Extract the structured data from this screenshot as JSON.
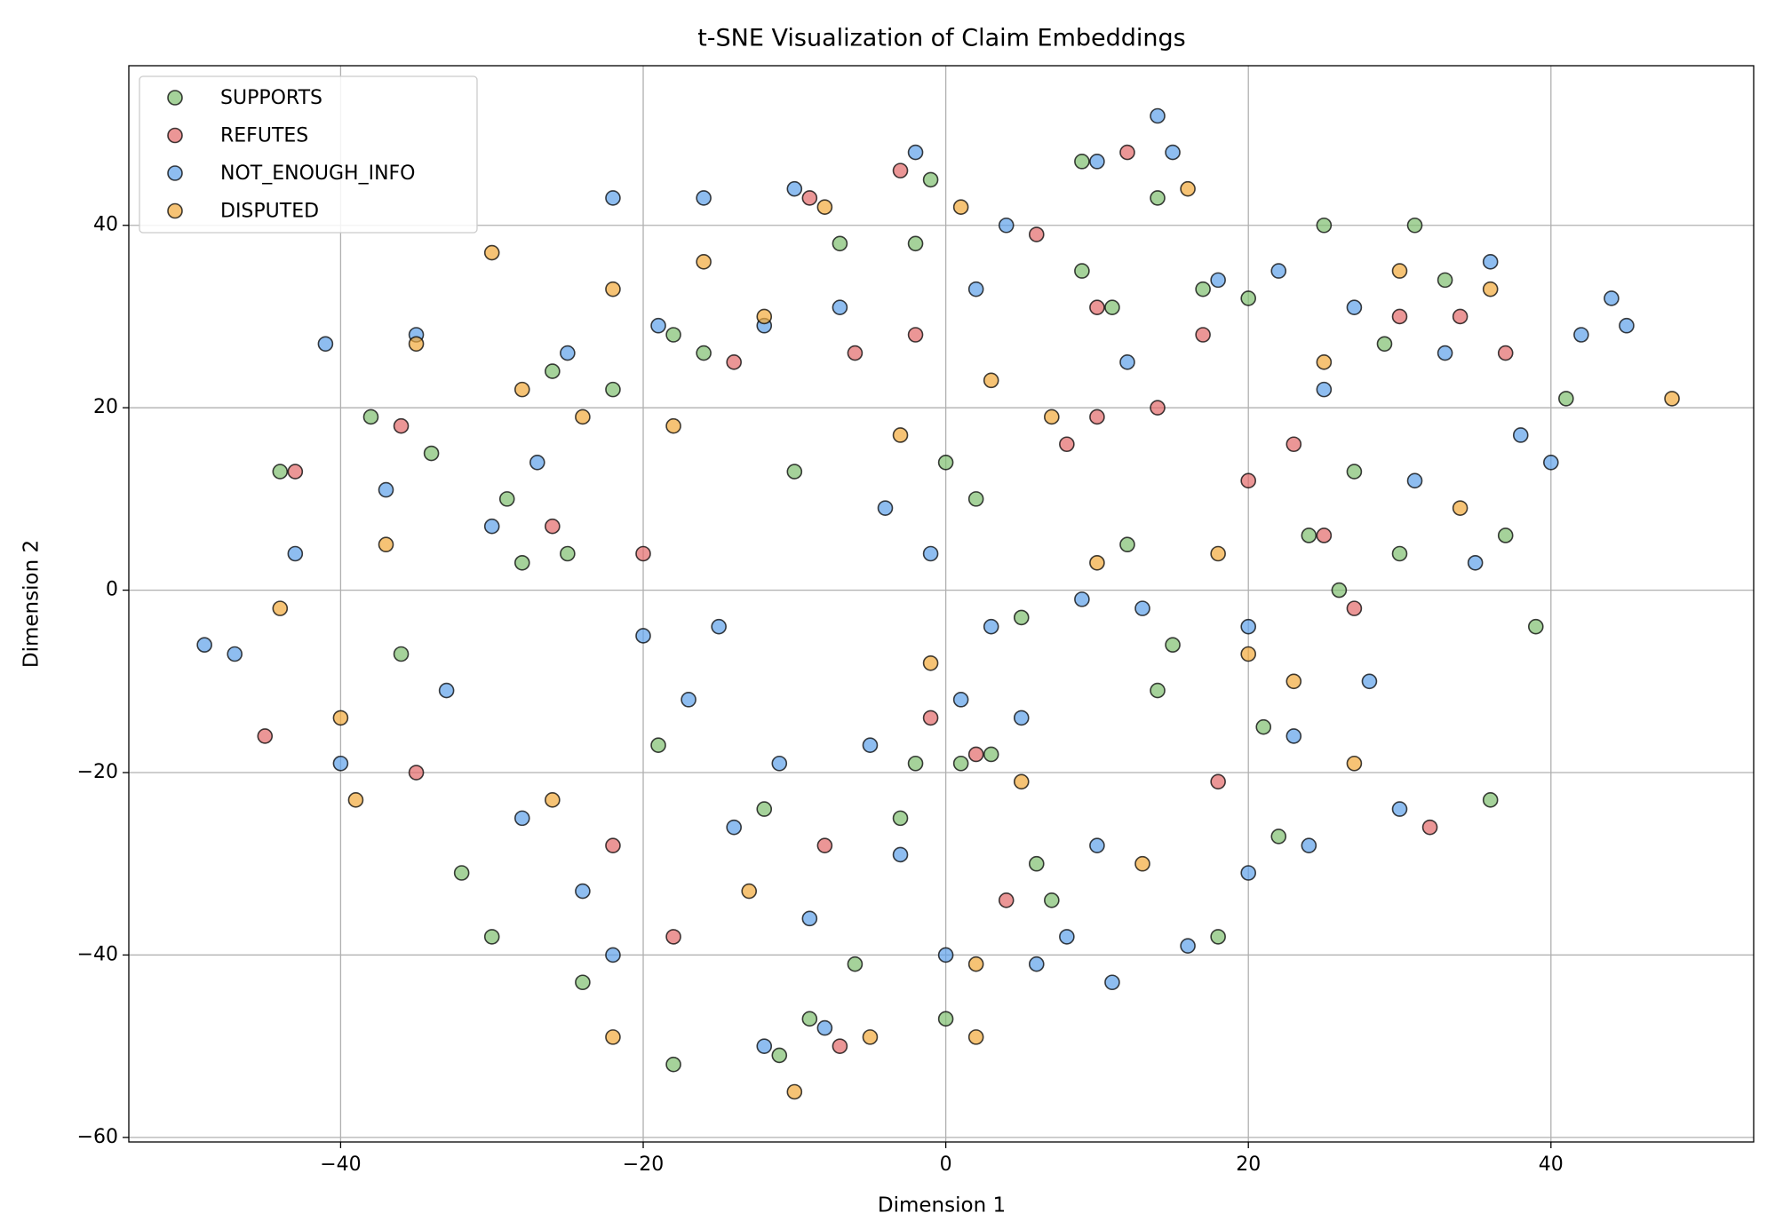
{
  "chart_data": {
    "type": "scatter",
    "title": "t-SNE Visualization of Claim Embeddings",
    "x_label": "Dimension 1",
    "y_label": "Dimension 2",
    "xlim": [
      -54,
      53.4
    ],
    "ylim": [
      -60.5,
      57.5
    ],
    "xticks": [
      {
        "value": -40,
        "label": "−40"
      },
      {
        "value": -20,
        "label": "−20"
      },
      0,
      20,
      40
    ],
    "yticks": [
      {
        "value": -60,
        "label": "−60"
      },
      {
        "value": -40,
        "label": "−40"
      },
      {
        "value": -20,
        "label": "−20"
      },
      0,
      20,
      40
    ],
    "grid": true,
    "legend": "upper-left",
    "series": [
      {
        "name": "SUPPORTS",
        "color": "#7fbf6f",
        "x": [
          -44,
          -36,
          -34,
          -29,
          -28,
          -26,
          -25,
          -22,
          -19,
          -18,
          -16,
          -12,
          -10,
          -9,
          -7,
          -6,
          -3,
          -2,
          -1,
          0,
          1,
          2,
          3,
          5,
          7,
          9,
          9,
          11,
          12,
          14,
          15,
          17,
          18,
          20,
          21,
          22,
          24,
          25,
          27,
          29,
          30,
          31,
          33,
          36,
          37,
          39,
          41,
          -30,
          -24,
          -18,
          -11,
          -2,
          0,
          6,
          14,
          26,
          -38,
          -32
        ],
        "values": [
          13,
          -7,
          15,
          10,
          3,
          24,
          4,
          22,
          -17,
          28,
          26,
          -24,
          13,
          -47,
          38,
          -41,
          -25,
          38,
          45,
          14,
          -19,
          10,
          -18,
          -3,
          -34,
          35,
          47,
          31,
          5,
          43,
          -6,
          33,
          -38,
          32,
          -15,
          -27,
          6,
          40,
          13,
          27,
          4,
          40,
          34,
          -23,
          6,
          -4,
          21,
          -38,
          -43,
          -52,
          -51,
          -19,
          -47,
          -30,
          -11,
          0,
          19,
          -31
        ]
      },
      {
        "name": "REFUTES",
        "color": "#e26a6a",
        "x": [
          -45,
          -43,
          -36,
          -35,
          -26,
          -22,
          -18,
          -14,
          -9,
          -7,
          -6,
          -3,
          -2,
          -1,
          2,
          4,
          6,
          8,
          10,
          12,
          14,
          17,
          18,
          20,
          23,
          25,
          27,
          30,
          32,
          34,
          37,
          -20,
          -8,
          10
        ],
        "values": [
          -16,
          13,
          18,
          -20,
          7,
          -28,
          -38,
          25,
          43,
          -50,
          26,
          46,
          28,
          -14,
          -18,
          -34,
          39,
          16,
          19,
          48,
          20,
          28,
          -21,
          12,
          16,
          6,
          -2,
          30,
          -26,
          30,
          26,
          4,
          -28,
          31
        ]
      },
      {
        "name": "NOT_ENOUGH_INFO",
        "color": "#5ea1ea",
        "x": [
          -49,
          -47,
          -43,
          -41,
          -40,
          -37,
          -35,
          -33,
          -30,
          -28,
          -25,
          -24,
          -22,
          -22,
          -20,
          -19,
          -17,
          -16,
          -15,
          -12,
          -11,
          -10,
          -9,
          -8,
          -7,
          -5,
          -4,
          -3,
          -2,
          -1,
          0,
          1,
          2,
          3,
          4,
          5,
          6,
          8,
          10,
          10,
          11,
          12,
          13,
          14,
          15,
          16,
          18,
          20,
          22,
          23,
          24,
          25,
          27,
          28,
          30,
          31,
          33,
          35,
          36,
          38,
          40,
          42,
          44,
          45,
          -12,
          -27,
          -14,
          9,
          20
        ],
        "values": [
          -6,
          -7,
          4,
          27,
          -19,
          11,
          28,
          -11,
          7,
          -25,
          26,
          -33,
          43,
          -40,
          -5,
          29,
          -12,
          43,
          -4,
          29,
          -19,
          44,
          -36,
          -48,
          31,
          -17,
          9,
          -29,
          48,
          4,
          -40,
          -12,
          33,
          -4,
          40,
          -14,
          -41,
          -38,
          -28,
          47,
          -43,
          25,
          -2,
          52,
          48,
          -39,
          34,
          -31,
          35,
          -16,
          -28,
          22,
          31,
          -10,
          -24,
          12,
          26,
          3,
          36,
          17,
          14,
          28,
          32,
          29,
          -50,
          14,
          -26,
          -1,
          -4
        ]
      },
      {
        "name": "DISPUTED",
        "color": "#f2a93b",
        "x": [
          -44,
          -40,
          -39,
          -37,
          -35,
          -30,
          -28,
          -26,
          -24,
          -22,
          -22,
          -18,
          -16,
          -13,
          -12,
          -10,
          -8,
          -5,
          -3,
          -1,
          1,
          2,
          3,
          5,
          7,
          10,
          13,
          16,
          18,
          20,
          23,
          25,
          27,
          30,
          34,
          36,
          48,
          2
        ],
        "values": [
          -2,
          -14,
          -23,
          5,
          27,
          37,
          22,
          -23,
          19,
          33,
          -49,
          18,
          36,
          -33,
          30,
          -55,
          42,
          -49,
          17,
          -8,
          42,
          -41,
          23,
          -21,
          19,
          3,
          -30,
          44,
          4,
          -7,
          -10,
          25,
          -19,
          35,
          9,
          33,
          21,
          -49
        ]
      }
    ]
  }
}
